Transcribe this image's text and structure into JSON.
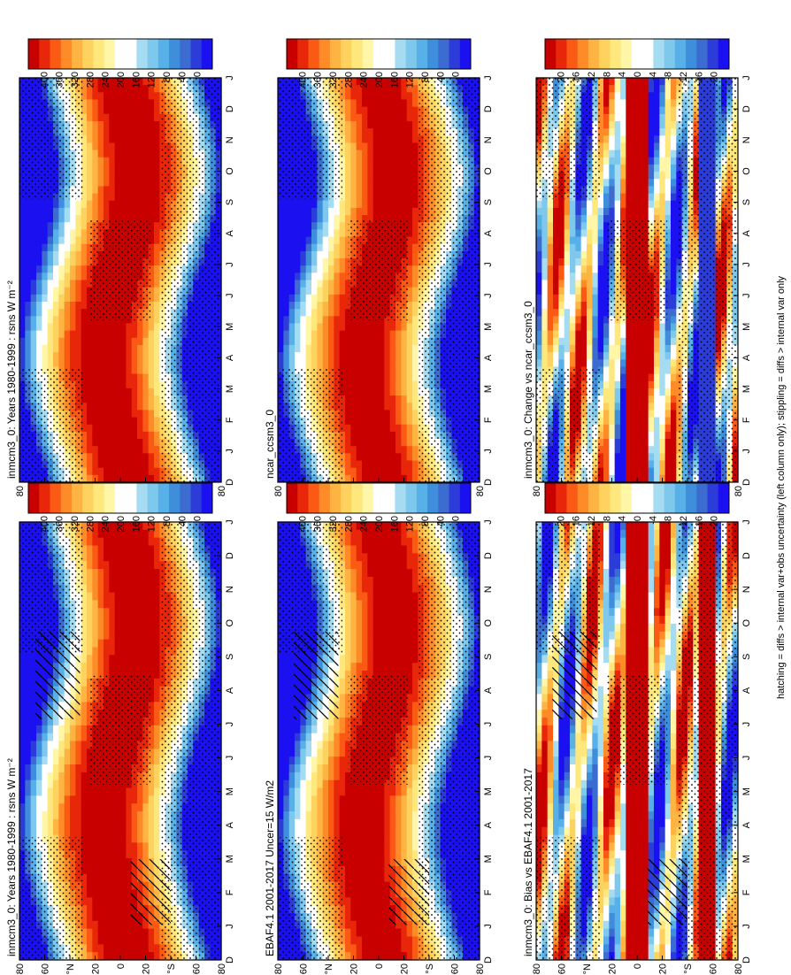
{
  "figure": {
    "footnote": "hatching = diffs > internal var+obs uncertainty (left column only); stippling = diffs > internal var only"
  },
  "chart_data": [
    {
      "type": "heatmap",
      "title": "inmcm3_0: Years 1980-1999 : rsns W m⁻²",
      "x_ticks": [
        "D",
        "J",
        "F",
        "M",
        "A",
        "M",
        "J",
        "J",
        "A",
        "S",
        "O",
        "N",
        "D",
        "J"
      ],
      "y_ticks": [
        "80",
        "60",
        "°N",
        "20",
        "0",
        "20",
        "°S",
        "60",
        "80"
      ],
      "colorbar": {
        "labels": [
          "400",
          "360",
          "320",
          "280",
          "240",
          "200",
          "160",
          "120",
          "80",
          "40",
          "0"
        ],
        "colors": [
          "#c80000",
          "#e8270a",
          "#fa5a14",
          "#fd8c28",
          "#fdb442",
          "#fdd25e",
          "#fee87e",
          "#fff6a8",
          "#ffffff",
          "#ffffff",
          "#a6dcf2",
          "#7ec8ee",
          "#57b0e8",
          "#3f8edc",
          "#3c6cd0",
          "#2c3cd8",
          "#1a10f0"
        ]
      },
      "hatched": true,
      "stippled": true
    },
    {
      "type": "heatmap",
      "title": "inmcm3_0: Years 1980-1999 : rsns W m⁻²",
      "x_ticks": [
        "D",
        "J",
        "F",
        "M",
        "A",
        "M",
        "J",
        "J",
        "A",
        "S",
        "O",
        "N",
        "D",
        "J"
      ],
      "y_ticks": [
        "80",
        "60",
        "°N",
        "20",
        "0",
        "20",
        "°S",
        "60",
        "80"
      ],
      "colorbar": {
        "labels": [
          "400",
          "360",
          "320",
          "280",
          "240",
          "200",
          "160",
          "120",
          "80",
          "40",
          "0"
        ]
      },
      "hatched": false,
      "stippled": true
    },
    {
      "type": "heatmap",
      "title": "EBAF4.1 2001-2017 Uncer=15 W/m2",
      "x_ticks": [
        "D",
        "J",
        "F",
        "M",
        "A",
        "M",
        "J",
        "J",
        "A",
        "S",
        "O",
        "N",
        "D",
        "J"
      ],
      "y_ticks": [
        "80",
        "60",
        "°N",
        "20",
        "0",
        "20",
        "°S",
        "60",
        "80"
      ],
      "colorbar": {
        "labels": [
          "400",
          "360",
          "320",
          "280",
          "240",
          "200",
          "160",
          "120",
          "80",
          "40",
          "0"
        ]
      },
      "hatched": true,
      "stippled": true
    },
    {
      "type": "heatmap",
      "title": "ncar_ccsm3_0",
      "x_ticks": [
        "D",
        "J",
        "F",
        "M",
        "A",
        "M",
        "J",
        "J",
        "A",
        "S",
        "O",
        "N",
        "D",
        "J"
      ],
      "y_ticks": [
        "80",
        "60",
        "°N",
        "20",
        "0",
        "20",
        "°S",
        "60",
        "80"
      ],
      "colorbar": {
        "labels": [
          "400",
          "360",
          "320",
          "280",
          "240",
          "200",
          "160",
          "120",
          "80",
          "40",
          "0"
        ]
      },
      "hatched": false,
      "stippled": true
    },
    {
      "type": "heatmap",
      "title": "inmcm3_0: Bias vs EBAF4.1 2001-2017",
      "x_ticks": [
        "D",
        "J",
        "F",
        "M",
        "A",
        "M",
        "J",
        "J",
        "A",
        "S",
        "O",
        "N",
        "D",
        "J"
      ],
      "y_ticks": [
        "80",
        "60",
        "°N",
        "20",
        "0",
        "20",
        "°S",
        "60",
        "80"
      ],
      "colorbar": {
        "labels": [
          "20",
          "16",
          "12",
          "8",
          "4",
          "0",
          "-4",
          "-8",
          "-12",
          "-16",
          "-20"
        ],
        "colors": [
          "#c80000",
          "#e8270a",
          "#fa5a14",
          "#fd8c28",
          "#fdb442",
          "#fdd25e",
          "#fee87e",
          "#fff6a8",
          "#ffffff",
          "#ffffff",
          "#a6dcf2",
          "#7ec8ee",
          "#57b0e8",
          "#3f8edc",
          "#3c6cd0",
          "#2c3cd8",
          "#1a10f0"
        ]
      },
      "hatched": true,
      "stippled": true
    },
    {
      "type": "heatmap",
      "title": "inmcm3_0: Change vs ncar_ccsm3_0",
      "x_ticks": [
        "D",
        "J",
        "F",
        "M",
        "A",
        "M",
        "J",
        "J",
        "A",
        "S",
        "O",
        "N",
        "D",
        "J"
      ],
      "y_ticks": [
        "80",
        "60",
        "°N",
        "20",
        "0",
        "20",
        "°S",
        "60",
        "80"
      ],
      "colorbar": {
        "labels": [
          "20",
          "16",
          "12",
          "8",
          "4",
          "0",
          "-4",
          "-8",
          "-12",
          "-16",
          "-20"
        ]
      },
      "hatched": false,
      "stippled": true
    }
  ]
}
